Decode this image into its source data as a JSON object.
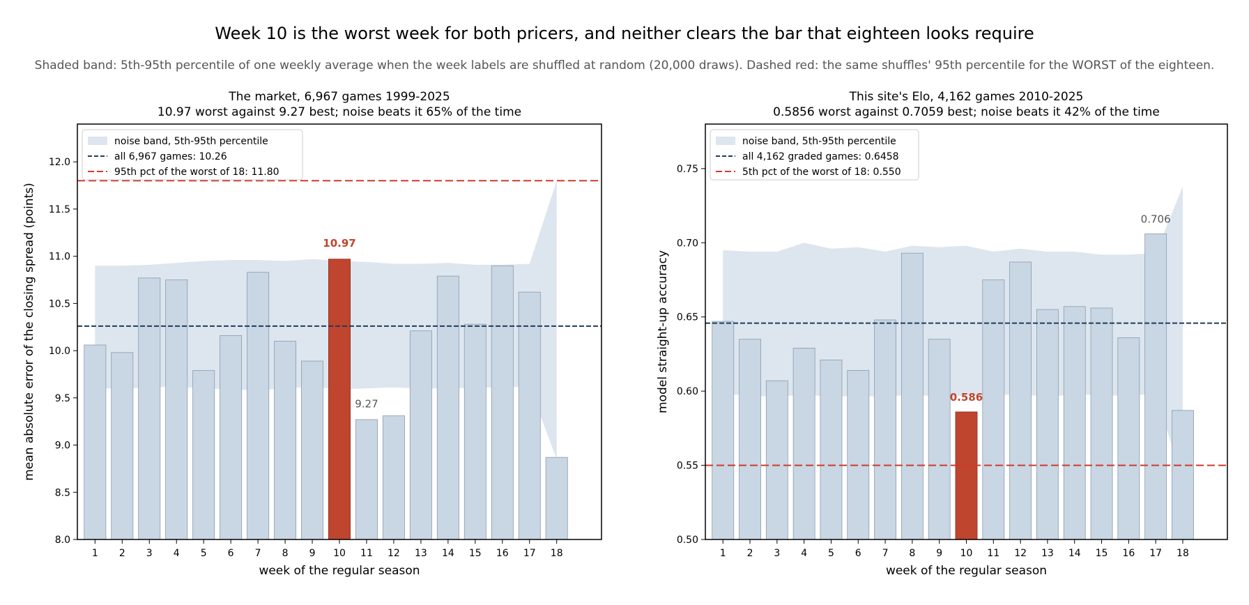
{
  "figure": {
    "title": "Week 10 is the worst week for both pricers, and neither clears the bar that eighteen looks require",
    "subtitle": "Shaded band: 5th-95th percentile of one weekly average when the week labels are shuffled at random (20,000 draws). Dashed red: the same shuffles' 95th percentile for the WORST of the eighteen."
  },
  "colors": {
    "bar": "#c9d6e3",
    "bar_edge": "#8a9bb0",
    "highlight": "#c0452e",
    "band": "#dde6ee",
    "mean_line": "#1f3b5c",
    "threshold_line": "#d0392b",
    "annotation_gray": "#555555"
  },
  "chart_data": [
    {
      "type": "bar",
      "title": "The market, 6,967 games 1999-2025",
      "subtitle": "10.97 worst against 9.27 best; noise beats it 65% of the time",
      "xlabel": "week of the regular season",
      "ylabel": "mean absolute error of the closing spread (points)",
      "ylim": [
        8.0,
        12.4
      ],
      "yticks": [
        8.0,
        8.5,
        9.0,
        9.5,
        10.0,
        10.5,
        11.0,
        11.5,
        12.0
      ],
      "ytick_labels": [
        "8.0",
        "8.5",
        "9.0",
        "9.5",
        "10.0",
        "10.5",
        "11.0",
        "11.5",
        "12.0"
      ],
      "categories": [
        "1",
        "2",
        "3",
        "4",
        "5",
        "6",
        "7",
        "8",
        "9",
        "10",
        "11",
        "12",
        "13",
        "14",
        "15",
        "16",
        "17",
        "18"
      ],
      "values": [
        10.06,
        9.98,
        10.77,
        10.75,
        9.79,
        10.16,
        10.83,
        10.1,
        9.89,
        10.97,
        9.27,
        9.31,
        10.21,
        10.79,
        10.28,
        10.9,
        10.62,
        8.87
      ],
      "highlight_index": 9,
      "band": {
        "low": [
          9.6,
          9.6,
          9.61,
          9.62,
          9.6,
          9.59,
          9.58,
          9.6,
          9.62,
          9.59,
          9.6,
          9.61,
          9.6,
          9.6,
          9.61,
          9.61,
          9.62,
          8.85
        ],
        "high": [
          10.9,
          10.9,
          10.91,
          10.93,
          10.95,
          10.96,
          10.96,
          10.95,
          10.97,
          10.95,
          10.94,
          10.92,
          10.92,
          10.93,
          10.91,
          10.91,
          10.92,
          11.8
        ]
      },
      "mean_line": 10.26,
      "threshold_line": 11.8,
      "legend": {
        "position": "upper-left",
        "entries": [
          "noise band, 5th-95th percentile",
          "all 6,967 games: 10.26",
          "95th pct of the worst of 18: 11.80"
        ]
      },
      "annotations": [
        {
          "text": "10.97",
          "x": "10",
          "y": 11.1,
          "style": "highlight"
        },
        {
          "text": "9.27",
          "x": "11",
          "y": 9.4,
          "style": "gray"
        }
      ]
    },
    {
      "type": "bar",
      "title": "This site's Elo, 4,162 games 2010-2025",
      "subtitle": "0.5856 worst against 0.7059 best; noise beats it 42% of the time",
      "xlabel": "week of the regular season",
      "ylabel": "model straight-up accuracy",
      "ylim": [
        0.5,
        0.78
      ],
      "yticks": [
        0.5,
        0.55,
        0.6,
        0.65,
        0.7,
        0.75
      ],
      "ytick_labels": [
        "0.50",
        "0.55",
        "0.60",
        "0.65",
        "0.70",
        "0.75"
      ],
      "categories": [
        "1",
        "2",
        "3",
        "4",
        "5",
        "6",
        "7",
        "8",
        "9",
        "10",
        "11",
        "12",
        "13",
        "14",
        "15",
        "16",
        "17",
        "18"
      ],
      "values": [
        0.647,
        0.635,
        0.607,
        0.629,
        0.621,
        0.614,
        0.648,
        0.693,
        0.635,
        0.586,
        0.675,
        0.687,
        0.655,
        0.657,
        0.656,
        0.636,
        0.706,
        0.587
      ],
      "highlight_index": 9,
      "band": {
        "low": [
          0.598,
          0.597,
          0.596,
          0.598,
          0.596,
          0.597,
          0.596,
          0.598,
          0.596,
          0.597,
          0.597,
          0.598,
          0.596,
          0.598,
          0.597,
          0.597,
          0.598,
          0.54
        ],
        "high": [
          0.695,
          0.694,
          0.694,
          0.7,
          0.696,
          0.697,
          0.694,
          0.698,
          0.697,
          0.698,
          0.694,
          0.696,
          0.694,
          0.694,
          0.692,
          0.692,
          0.693,
          0.738
        ]
      },
      "mean_line": 0.6458,
      "threshold_line": 0.55,
      "legend": {
        "position": "upper-left",
        "entries": [
          "noise band, 5th-95th percentile",
          "all 4,162 graded games: 0.6458",
          "5th pct of the worst of 18: 0.550"
        ]
      },
      "annotations": [
        {
          "text": "0.586",
          "x": "10",
          "y": 0.5935,
          "style": "highlight"
        },
        {
          "text": "0.706",
          "x": "17",
          "y": 0.7135,
          "style": "gray"
        }
      ]
    }
  ]
}
